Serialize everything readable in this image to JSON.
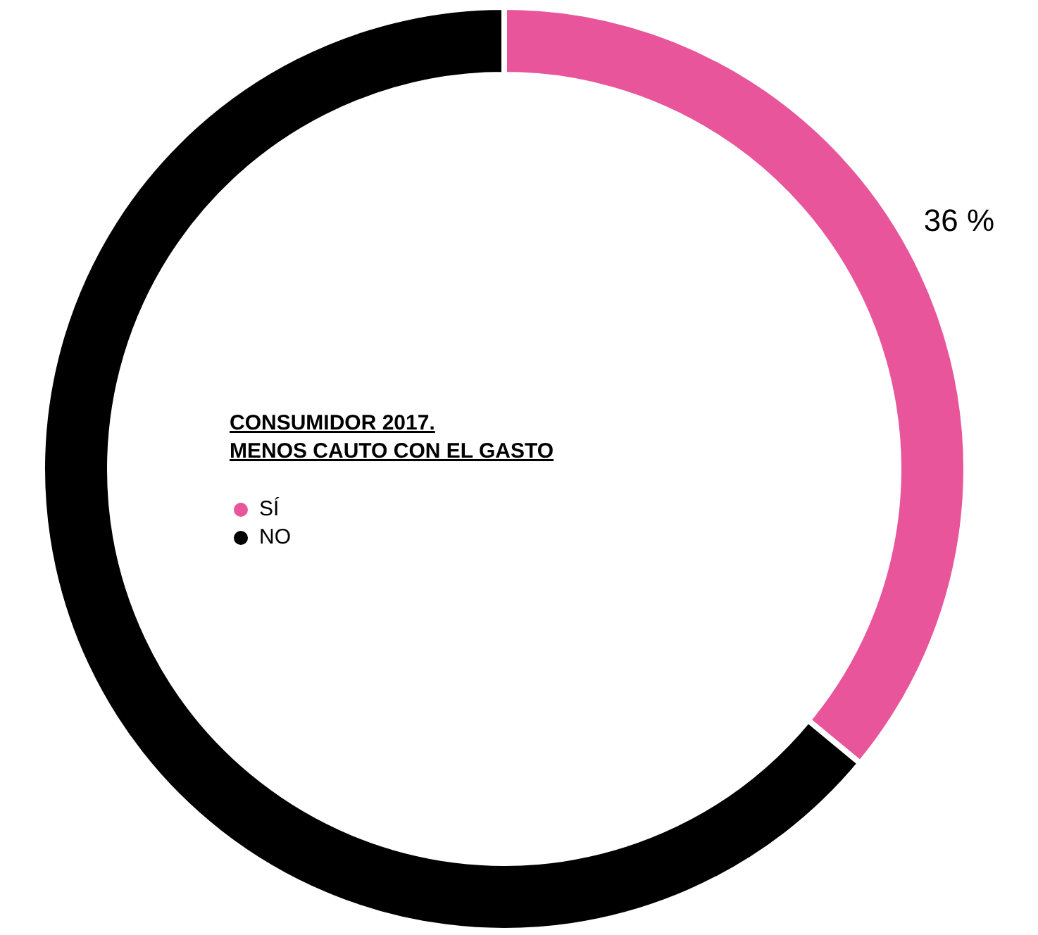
{
  "chart_data": {
    "type": "donut",
    "title": "CONSUMIDOR 2017.\nMENOS CAUTO CON EL GASTO",
    "categories": [
      "SÍ",
      "NO"
    ],
    "values": [
      36,
      64
    ],
    "colors": [
      "#e8559a",
      "#000000"
    ],
    "value_labels": [
      "36 %",
      null
    ],
    "legend": "left"
  }
}
